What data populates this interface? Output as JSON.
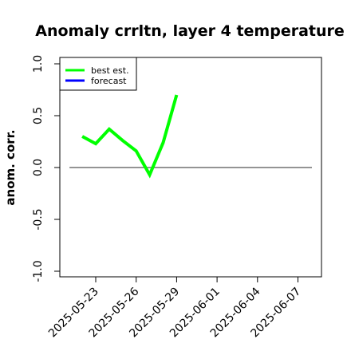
{
  "chart_data": {
    "type": "line",
    "title": "Anomaly crrltn, layer 4 temperature",
    "xlabel": "",
    "ylabel": "anom. corr.",
    "ylim": [
      -1.0,
      1.0
    ],
    "yticks": [
      "-1.0",
      "-0.5",
      "0.0",
      "0.5",
      "1.0"
    ],
    "x_ticks": [
      "2025-05-23",
      "2025-05-26",
      "2025-05-29",
      "2025-06-01",
      "2025-06-04",
      "2025-06-07"
    ],
    "highlight_tick": "2025-05-29",
    "highlight_color": "#228B22",
    "reference_line": 0.0,
    "grid": false,
    "legend_position": "top-left",
    "series": [
      {
        "name": "best est.",
        "color": "#00ff00",
        "x": [
          "2025-05-22",
          "2025-05-23",
          "2025-05-24",
          "2025-05-25",
          "2025-05-26",
          "2025-05-27",
          "2025-05-28",
          "2025-05-29"
        ],
        "values": [
          0.3,
          0.23,
          0.37,
          0.26,
          0.16,
          -0.07,
          0.24,
          0.7
        ]
      },
      {
        "name": "forecast",
        "color": "#0000ff",
        "x": [],
        "values": []
      }
    ]
  }
}
